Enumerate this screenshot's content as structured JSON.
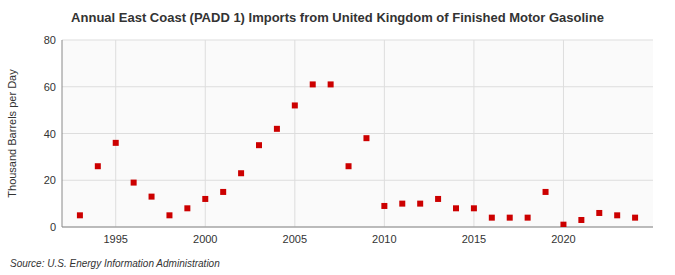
{
  "chart_data": {
    "type": "scatter",
    "title": "Annual East Coast (PADD 1) Imports from United Kingdom of Finished Motor Gasoline",
    "ylabel": "Thousand Barrels per Day",
    "annotations": [
      "Source: U.S. Energy Information Administration"
    ],
    "x": [
      1993,
      1994,
      1995,
      1996,
      1997,
      1998,
      1999,
      2000,
      2001,
      2002,
      2003,
      2004,
      2005,
      2006,
      2007,
      2008,
      2009,
      2010,
      2011,
      2012,
      2013,
      2014,
      2015,
      2016,
      2017,
      2018,
      2019,
      2020,
      2021,
      2022,
      2023,
      2024
    ],
    "values": [
      5,
      26,
      36,
      19,
      13,
      5,
      8,
      12,
      15,
      23,
      35,
      42,
      52,
      61,
      61,
      26,
      38,
      9,
      10,
      10,
      12,
      8,
      8,
      4,
      4,
      4,
      15,
      1,
      3,
      6,
      5,
      4
    ],
    "color": "#cc0000",
    "marker": "square",
    "xlim": [
      1992,
      2025
    ],
    "ylim": [
      0,
      80
    ],
    "xticks": [
      1995,
      2000,
      2005,
      2010,
      2015,
      2020
    ],
    "yticks": [
      0,
      20,
      40,
      60,
      80
    ],
    "grid": true
  }
}
